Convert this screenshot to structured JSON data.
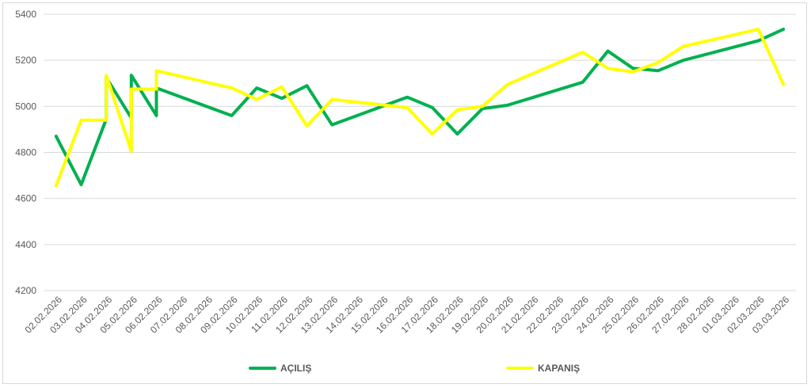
{
  "chart_data": {
    "type": "line",
    "title": "",
    "xlabel": "",
    "ylabel": "",
    "ylim": [
      4200,
      5400
    ],
    "yticks": [
      4200,
      4400,
      4600,
      4800,
      5000,
      5200,
      5400
    ],
    "grid": true,
    "legend_position": "bottom",
    "categories": [
      "02.02.2026",
      "03.02.2026",
      "04.02.2026",
      "05.02.2026",
      "06.02.2026",
      "07.02.2026",
      "08.02.2026",
      "09.02.2026",
      "10.02.2026",
      "11.02.2026",
      "12.02.2026",
      "13.02.2026",
      "14.02.2026",
      "15.02.2026",
      "16.02.2026",
      "17.02.2026",
      "18.02.2026",
      "19.02.2026",
      "20.02.2026",
      "21.02.2026",
      "22.02.2026",
      "23.02.2026",
      "24.02.2026",
      "25.02.2026",
      "26.02.2026",
      "27.02.2026",
      "28.02.2026",
      "01.03.2026",
      "02.03.2026",
      "03.03.2026"
    ],
    "series": [
      {
        "name": "AÇILIŞ",
        "color": "#00b050",
        "points": [
          [
            0,
            4870
          ],
          [
            1,
            4660
          ],
          [
            2,
            4945
          ],
          [
            2,
            5125
          ],
          [
            3,
            4950
          ],
          [
            3,
            5135
          ],
          [
            4,
            4960
          ],
          [
            4,
            5080
          ],
          [
            7,
            4960
          ],
          [
            8,
            5080
          ],
          [
            9,
            5035
          ],
          [
            10,
            5090
          ],
          [
            11,
            4920
          ],
          [
            14,
            5040
          ],
          [
            15,
            4995
          ],
          [
            16,
            4880
          ],
          [
            17,
            4990
          ],
          [
            18,
            5005
          ],
          [
            21,
            5105
          ],
          [
            22,
            5240
          ],
          [
            23,
            5165
          ],
          [
            24,
            5155
          ],
          [
            25,
            5200
          ],
          [
            28,
            5285
          ],
          [
            29,
            5335
          ]
        ]
      },
      {
        "name": "KAPANIŞ",
        "color": "#ffff00",
        "points": [
          [
            0,
            4655
          ],
          [
            1,
            4940
          ],
          [
            2,
            4940
          ],
          [
            2,
            5135
          ],
          [
            3,
            4805
          ],
          [
            3,
            5075
          ],
          [
            4,
            5075
          ],
          [
            4,
            5155
          ],
          [
            7,
            5080
          ],
          [
            8,
            5030
          ],
          [
            9,
            5085
          ],
          [
            10,
            4915
          ],
          [
            11,
            5030
          ],
          [
            14,
            4995
          ],
          [
            15,
            4880
          ],
          [
            16,
            4985
          ],
          [
            17,
            5000
          ],
          [
            18,
            5095
          ],
          [
            21,
            5235
          ],
          [
            22,
            5165
          ],
          [
            23,
            5150
          ],
          [
            24,
            5190
          ],
          [
            25,
            5260
          ],
          [
            28,
            5335
          ],
          [
            29,
            5095
          ]
        ]
      }
    ]
  }
}
